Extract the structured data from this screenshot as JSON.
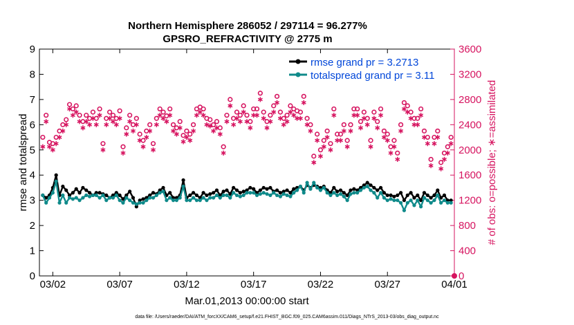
{
  "chart_data": {
    "type": "line",
    "title": "Northern Hemisphere 286052 / 297114 = 96.277%",
    "subtitle": "GPSRO_REFRACTIVITY @ 2775 m",
    "xlabel": "Mar.01,2013 00:00:00 start",
    "ylabel": "rmse and totalspread",
    "y2label": "# of obs: o=possible; ∗=assimilated",
    "footnote": "data file: /Users/raeder/DAI/ATM_forcXX/CAM6_setup/f.e21.FHIST_BGC.f09_025.CAM6assim.011/Diags_NTrS_2013-03/obs_diag_output.nc",
    "xlim": [
      0.5,
      31.5
    ],
    "ylim": [
      0,
      9
    ],
    "y2lim": [
      0,
      3600
    ],
    "x_ticks": [
      1.5,
      6.5,
      11.5,
      16.5,
      21.5,
      26.5,
      31.5
    ],
    "x_tick_labels": [
      "03/02",
      "03/07",
      "03/12",
      "03/17",
      "03/22",
      "03/27",
      "04/01"
    ],
    "y_ticks": [
      0,
      1,
      2,
      3,
      4,
      5,
      6,
      7,
      8,
      9
    ],
    "y2_ticks": [
      0,
      400,
      800,
      1200,
      1600,
      2000,
      2400,
      2800,
      3200,
      3600
    ],
    "legend": {
      "position": "top-right",
      "entries": [
        "rmse grand pr = 3.2713",
        "totalspread grand pr = 3.11"
      ]
    },
    "colors": {
      "rmse": "#000000",
      "spread": "#0f8a8a",
      "obs": "#d6135f",
      "legend_text": "#0046d9"
    },
    "x": [
      0.75,
      1.0,
      1.25,
      1.5,
      1.75,
      2.0,
      2.25,
      2.5,
      2.75,
      3.0,
      3.25,
      3.5,
      3.75,
      4.0,
      4.25,
      4.5,
      4.75,
      5.0,
      5.25,
      5.5,
      5.75,
      6.0,
      6.25,
      6.5,
      6.75,
      7.0,
      7.25,
      7.5,
      7.75,
      8.0,
      8.25,
      8.5,
      8.75,
      9.0,
      9.25,
      9.5,
      9.75,
      10.0,
      10.25,
      10.5,
      10.75,
      11.0,
      11.25,
      11.5,
      11.75,
      12.0,
      12.25,
      12.5,
      12.75,
      13.0,
      13.25,
      13.5,
      13.75,
      14.0,
      14.25,
      14.5,
      14.75,
      15.0,
      15.25,
      15.5,
      15.75,
      16.0,
      16.25,
      16.5,
      16.75,
      17.0,
      17.25,
      17.5,
      17.75,
      18.0,
      18.25,
      18.5,
      18.75,
      19.0,
      19.25,
      19.5,
      19.75,
      20.0,
      20.25,
      20.5,
      20.75,
      21.0,
      21.25,
      21.5,
      21.75,
      22.0,
      22.25,
      22.5,
      22.75,
      23.0,
      23.25,
      23.5,
      23.75,
      24.0,
      24.25,
      24.5,
      24.75,
      25.0,
      25.25,
      25.5,
      25.75,
      26.0,
      26.25,
      26.5,
      26.75,
      27.0,
      27.25,
      27.5,
      27.75,
      28.0,
      28.25,
      28.5,
      28.75,
      29.0,
      29.25,
      29.5,
      29.75,
      30.0,
      30.25,
      30.5,
      30.75,
      31.0,
      31.25
    ],
    "series": [
      {
        "name": "rmse",
        "values": [
          3.2,
          3.1,
          3.2,
          3.5,
          4.0,
          3.2,
          3.55,
          3.4,
          3.2,
          3.3,
          3.45,
          3.3,
          3.5,
          3.4,
          3.3,
          3.2,
          3.3,
          3.3,
          3.25,
          3.2,
          3.1,
          3.2,
          3.3,
          3.2,
          3.05,
          3.2,
          3.35,
          3.1,
          2.75,
          3.0,
          3.05,
          3.1,
          3.2,
          3.3,
          3.25,
          3.4,
          3.5,
          3.2,
          3.3,
          3.1,
          3.1,
          3.2,
          3.8,
          3.1,
          3.2,
          3.3,
          3.2,
          3.1,
          3.3,
          3.2,
          3.25,
          3.3,
          3.4,
          3.2,
          3.35,
          3.4,
          3.25,
          3.5,
          3.4,
          3.3,
          3.35,
          3.4,
          3.5,
          3.45,
          3.3,
          3.4,
          3.5,
          3.45,
          3.5,
          3.35,
          3.4,
          3.3,
          3.35,
          3.4,
          3.3,
          3.45,
          3.5,
          3.55,
          3.4,
          3.6,
          3.5,
          3.6,
          3.55,
          3.5,
          3.55,
          3.4,
          3.3,
          3.5,
          3.35,
          3.4,
          3.3,
          3.2,
          3.4,
          3.45,
          3.4,
          3.5,
          3.6,
          3.7,
          3.6,
          3.5,
          3.4,
          3.5,
          3.3,
          3.2,
          3.2,
          3.15,
          3.2,
          3.3,
          3.0,
          3.2,
          3.3,
          3.1,
          3.2,
          3.0,
          3.3,
          3.2,
          3.1,
          3.2,
          3.4,
          3.1,
          3.2,
          3.0,
          3.0
        ]
      },
      {
        "name": "totalspread",
        "values": [
          3.2,
          2.9,
          3.1,
          3.3,
          3.75,
          2.9,
          3.2,
          2.9,
          3.1,
          3.05,
          3.1,
          3.0,
          3.1,
          3.2,
          3.15,
          3.2,
          3.2,
          3.1,
          3.2,
          3.0,
          3.1,
          3.1,
          3.2,
          3.0,
          2.9,
          3.1,
          3.0,
          2.9,
          2.85,
          2.9,
          2.9,
          3.0,
          3.1,
          3.1,
          3.2,
          3.3,
          3.35,
          3.0,
          3.1,
          3.0,
          3.0,
          3.1,
          3.55,
          3.0,
          3.0,
          3.1,
          3.0,
          3.0,
          3.1,
          3.0,
          3.1,
          3.1,
          3.2,
          3.1,
          3.2,
          3.2,
          3.1,
          3.3,
          3.2,
          3.15,
          3.2,
          3.3,
          3.3,
          3.3,
          3.2,
          3.25,
          3.3,
          3.25,
          3.2,
          3.3,
          3.2,
          3.15,
          3.25,
          3.2,
          3.15,
          3.3,
          3.4,
          3.55,
          3.3,
          3.7,
          3.45,
          3.7,
          3.5,
          3.4,
          3.5,
          3.3,
          3.2,
          3.3,
          3.2,
          3.25,
          3.15,
          3.0,
          3.25,
          3.3,
          3.3,
          3.4,
          3.5,
          3.55,
          3.4,
          3.3,
          3.1,
          3.3,
          3.1,
          3.0,
          3.05,
          3.0,
          3.0,
          2.9,
          2.6,
          2.9,
          3.0,
          2.8,
          3.0,
          2.75,
          3.1,
          3.0,
          2.9,
          3.0,
          3.2,
          2.9,
          3.0,
          2.9,
          2.9
        ]
      },
      {
        "name": "possible",
        "values": [
          2200,
          2550,
          2120,
          2100,
          2200,
          2300,
          2400,
          2480,
          2720,
          2650,
          2700,
          2550,
          2450,
          2550,
          2500,
          2600,
          2500,
          2650,
          2100,
          2500,
          2600,
          2550,
          2500,
          2620,
          2050,
          2350,
          2550,
          2400,
          2500,
          2250,
          2150,
          2300,
          2400,
          2100,
          2500,
          2650,
          2600,
          2540,
          2650,
          2400,
          2350,
          2450,
          2230,
          2300,
          2250,
          2400,
          2650,
          2680,
          2650,
          2500,
          2480,
          2400,
          2450,
          2350,
          2050,
          2550,
          2800,
          2500,
          2600,
          2550,
          2700,
          2550,
          2450,
          2650,
          2650,
          2900,
          2600,
          2450,
          2550,
          2700,
          2850,
          2600,
          2500,
          2550,
          2700,
          2650,
          2620,
          2600,
          2850,
          2500,
          2400,
          1900,
          2250,
          2000,
          2150,
          2300,
          2100,
          2650,
          2250,
          2250,
          2400,
          2150,
          2400,
          2650,
          2650,
          2450,
          2600,
          2500,
          2150,
          2600,
          2450,
          2650,
          2300,
          2250,
          2050,
          2150,
          1950,
          2400,
          2750,
          2700,
          2600,
          2500,
          2500,
          2650,
          2300,
          2200,
          1850,
          2200,
          2300,
          1800,
          1950,
          2050,
          2200
        ]
      },
      {
        "name": "assimilated",
        "values": [
          2050,
          2450,
          2050,
          2000,
          2100,
          2200,
          2300,
          2400,
          2650,
          2550,
          2600,
          2450,
          2350,
          2450,
          2400,
          2500,
          2400,
          2550,
          2000,
          2400,
          2500,
          2450,
          2400,
          2500,
          1950,
          2250,
          2450,
          2300,
          2400,
          2150,
          2050,
          2200,
          2300,
          2000,
          2400,
          2550,
          2500,
          2450,
          2550,
          2300,
          2250,
          2350,
          2130,
          2200,
          2150,
          2300,
          2550,
          2600,
          2550,
          2400,
          2380,
          2300,
          2350,
          2250,
          1950,
          2450,
          2700,
          2400,
          2500,
          2450,
          2600,
          2450,
          2350,
          2550,
          2550,
          2800,
          2500,
          2350,
          2450,
          2600,
          2750,
          2500,
          2400,
          2450,
          2600,
          2550,
          2500,
          2500,
          2750,
          2400,
          2300,
          1800,
          2150,
          1900,
          2050,
          2200,
          2000,
          2550,
          2150,
          2150,
          2300,
          2050,
          2300,
          2550,
          2550,
          2350,
          2500,
          2400,
          2050,
          2500,
          2350,
          2550,
          2200,
          2150,
          1950,
          2050,
          1850,
          2300,
          2650,
          2600,
          2500,
          2400,
          2400,
          2550,
          2200,
          2100,
          1750,
          2100,
          2200,
          1700,
          1850,
          1950,
          2100
        ]
      }
    ]
  }
}
